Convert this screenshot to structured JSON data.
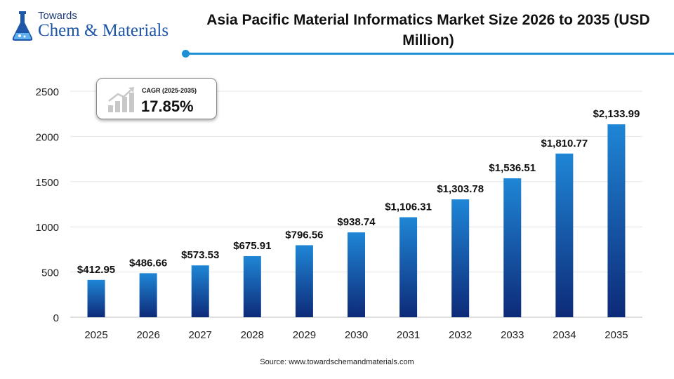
{
  "brand": {
    "line1": "Towards",
    "line2": "Chem & Materials",
    "icon": "flask-logo-icon"
  },
  "cagr": {
    "label": "CAGR (2025-2035)",
    "value": "17.85%",
    "icon": "growth-bars-icon"
  },
  "source": "Source: www.towardschemandmaterials.com",
  "colors": {
    "bar_top": "#1f86d6",
    "bar_bottom": "#0d2a78",
    "accent_line": "#1f8fd6"
  },
  "chart_data": {
    "type": "bar",
    "title": "Asia Pacific Material Informatics Market Size 2026 to 2035 (USD Million)",
    "categories": [
      "2025",
      "2026",
      "2027",
      "2028",
      "2029",
      "2030",
      "2031",
      "2032",
      "2033",
      "2034",
      "2035"
    ],
    "values": [
      412.95,
      486.66,
      573.53,
      675.91,
      796.56,
      938.74,
      1106.31,
      1303.78,
      1536.51,
      1810.77,
      2133.99
    ],
    "data_labels": [
      "$412.95",
      "$486.66",
      "$573.53",
      "$675.91",
      "$796.56",
      "$938.74",
      "$1,106.31",
      "$1,303.78",
      "$1,536.51",
      "$1,810.77",
      "$2,133.99"
    ],
    "ylim": [
      0,
      2500
    ],
    "yticks": [
      0,
      500,
      1000,
      1500,
      2000,
      2500
    ],
    "grid": true,
    "xlabel": "",
    "ylabel": ""
  }
}
